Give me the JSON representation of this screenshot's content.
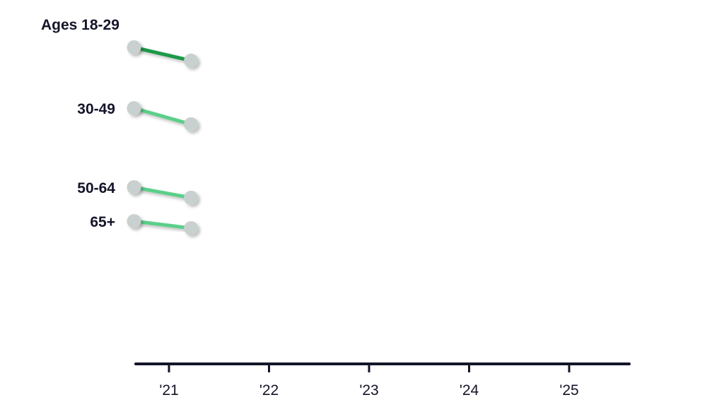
{
  "chart_data": {
    "type": "line",
    "title": "",
    "xlabel": "",
    "ylabel": "",
    "x_ticks": [
      2021,
      2022,
      2023,
      2024,
      2025
    ],
    "x_tick_labels": [
      "'21",
      "'22",
      "'23",
      "'24",
      "'25"
    ],
    "xlim": [
      2020.7,
      2025.6
    ],
    "ylim": [
      0,
      100
    ],
    "grid": false,
    "legend": "direct labels, left",
    "series": [
      {
        "name": "Ages 18-29",
        "color": "#1f9a4a",
        "x": [
          2020.65,
          2021.22
        ],
        "y": [
          90.5,
          86.7
        ]
      },
      {
        "name": "30-49",
        "color": "#5ccf8a",
        "x": [
          2020.65,
          2021.22
        ],
        "y": [
          73.1,
          68.5
        ]
      },
      {
        "name": "50-64",
        "color": "#5ccf8a",
        "x": [
          2020.65,
          2021.22
        ],
        "y": [
          50.5,
          47.5
        ]
      },
      {
        "name": "65+",
        "color": "#5ccf8a",
        "x": [
          2020.65,
          2021.22
        ],
        "y": [
          40.8,
          38.8
        ]
      }
    ],
    "marker_color": "#c9d0d0",
    "axis_color": "#14142a"
  }
}
